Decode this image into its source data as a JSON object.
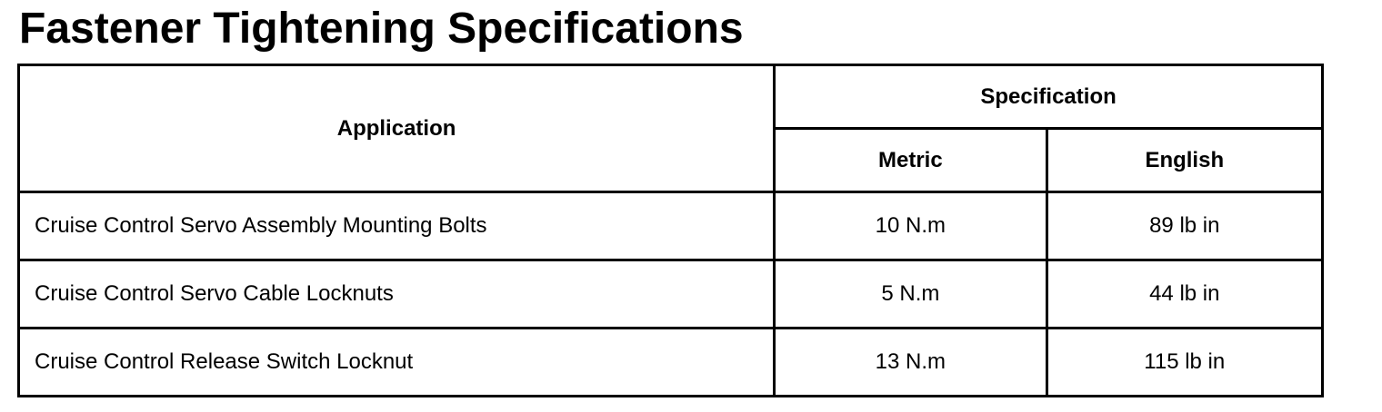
{
  "title": "Fastener Tightening Specifications",
  "table": {
    "headers": {
      "application": "Application",
      "specification": "Specification",
      "metric": "Metric",
      "english": "English"
    },
    "rows": [
      {
        "application": "Cruise Control Servo Assembly Mounting Bolts",
        "metric": "10 N.m",
        "english": "89 lb in"
      },
      {
        "application": "Cruise Control Servo Cable Locknuts",
        "metric": "5 N.m",
        "english": "44 lb in"
      },
      {
        "application": "Cruise Control Release Switch Locknut",
        "metric": "13 N.m",
        "english": "115 lb in"
      }
    ]
  }
}
